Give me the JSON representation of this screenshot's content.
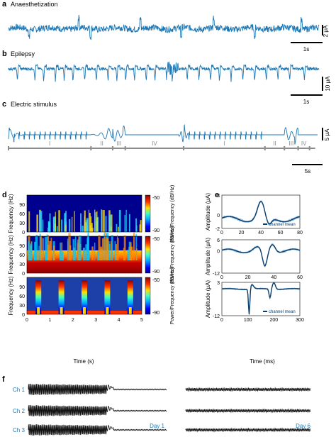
{
  "panels": {
    "a": {
      "letter": "a",
      "title": "Anaesthetization",
      "scale_y": "2 μA",
      "scale_x": "1s"
    },
    "b": {
      "letter": "b",
      "title": "Epilepsy",
      "scale_y": "10 μA",
      "scale_x": "1s"
    },
    "c": {
      "letter": "c",
      "title": "Electric stimulus",
      "scale_y": "5 μA",
      "scale_x": "5s",
      "phases": [
        "I",
        "II",
        "III",
        "IV",
        "I",
        "II",
        "III",
        "IV"
      ]
    },
    "d": {
      "letter": "d"
    },
    "e": {
      "letter": "e"
    },
    "f": {
      "letter": "f",
      "day1": "Day 1",
      "day6": "Day 6",
      "channels": [
        "Ch 1",
        "Ch 2",
        "Ch 3"
      ]
    }
  },
  "colors": {
    "trace": "#1f78b4",
    "mean": "#0b3d6b",
    "light": "#7fb6e0",
    "grey": "#8c8c8c",
    "black": "#111111"
  },
  "chart_data": [
    {
      "type": "line",
      "panel": "a",
      "title": "Anaesthetization",
      "xlabel": "",
      "ylabel": "",
      "x_range_s": [
        0,
        5.3
      ],
      "description_values": {
        "scale_bar_y_uA": 2,
        "scale_bar_x_s": 1
      },
      "series": [
        {
          "name": "",
          "spike_times_s": [
            0.35,
            1.2,
            1.4,
            2.25,
            2.95,
            3.5,
            4.2,
            5.0
          ]
        }
      ]
    },
    {
      "type": "line",
      "panel": "b",
      "title": "Epilepsy",
      "xlabel": "",
      "ylabel": "",
      "x_range_s": [
        0,
        5.3
      ],
      "description_values": {
        "scale_bar_y_uA": 10,
        "scale_bar_x_s": 1
      },
      "series": [
        {
          "name": "",
          "spike_times_s": [
            0.15,
            0.45,
            0.6,
            0.8,
            0.95,
            1.1,
            1.3,
            1.5,
            1.7,
            1.85,
            2.0,
            2.15,
            2.35,
            2.5,
            2.7,
            2.8,
            3.05,
            3.25,
            3.45,
            3.6,
            3.8,
            4.0,
            4.2,
            4.4,
            4.6,
            4.8,
            5.05
          ]
        }
      ]
    },
    {
      "type": "line",
      "panel": "c",
      "title": "Electric stimulus",
      "xlabel": "",
      "ylabel": "",
      "x_range_s": [
        0,
        27
      ],
      "description_values": {
        "scale_bar_y_uA": 5,
        "scale_bar_x_s": 5
      },
      "phase_boundaries_s": [
        0,
        7.2,
        9.1,
        10.2,
        15.3,
        22.4,
        24.1,
        25.3,
        26.3
      ],
      "phase_labels": [
        "I",
        "II",
        "III",
        "IV",
        "I",
        "II",
        "III",
        "IV"
      ]
    },
    {
      "type": "heatmap",
      "panel": "d",
      "xlabel": "Time (s)",
      "ylabel": "Frequency (Hz)",
      "x_ticks": [
        "0",
        "1",
        "2",
        "3",
        "4",
        "5"
      ],
      "y_ticks": [
        "0",
        "30",
        "60",
        "90"
      ],
      "colorbar_label": "Power/Frequency (dB/Hz)",
      "colorbar_ticks": [
        "-50",
        "-90"
      ],
      "colorbar_range": [
        -90,
        -50
      ],
      "rows": [
        {
          "condition": "Anaesthetization",
          "description": "sparse low-frequency bursts"
        },
        {
          "condition": "Epilepsy",
          "description": "dense high power below ~60 Hz"
        },
        {
          "condition": "Electric stimulus",
          "peaks_at_s": [
            0.5,
            1.5,
            2.5,
            3.5,
            4.5
          ]
        }
      ]
    },
    {
      "type": "line",
      "panel": "e",
      "xlabel": "Time (ms)",
      "ylabel": "Amplitude (μA)",
      "legend": "channel mean",
      "subplots": [
        {
          "x_ticks": [
            "0",
            "20",
            "40",
            "60",
            "80"
          ],
          "y_ticks": [
            "3",
            "0",
            "-2"
          ],
          "ylim": [
            -2,
            3
          ],
          "xlim": [
            0,
            80
          ]
        },
        {
          "x_ticks": [
            "0",
            "20",
            "40",
            "60"
          ],
          "y_ticks": [
            "6",
            "0",
            "-12"
          ],
          "ylim": [
            -12,
            6
          ],
          "xlim": [
            0,
            60
          ]
        },
        {
          "x_ticks": [
            "0",
            "100",
            "200",
            "300"
          ],
          "y_ticks": [
            "3",
            "-12"
          ],
          "ylim": [
            -12,
            3
          ],
          "xlim": [
            0,
            300
          ]
        }
      ]
    }
  ]
}
